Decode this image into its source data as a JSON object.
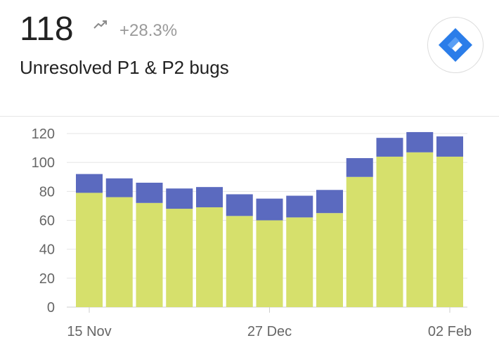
{
  "header": {
    "value": "118",
    "change": "+28.3%",
    "subtitle": "Unresolved P1 & P2 bugs",
    "trend_icon": "trending-up-icon",
    "logo_icon": "jira-logo-icon"
  },
  "colors": {
    "base": "#d6e06c",
    "top": "#5b6abf",
    "logo": "#2b7de9"
  },
  "chart_data": {
    "type": "bar",
    "stacked": true,
    "categories": [
      "15 Nov",
      "",
      "",
      "",
      "",
      "",
      "27 Dec",
      "",
      "",
      "",
      "",
      "",
      "02 Feb"
    ],
    "series": [
      {
        "values": [
          79,
          76,
          72,
          68,
          69,
          63,
          60,
          62,
          65,
          90,
          104,
          107,
          104
        ]
      },
      {
        "values": [
          13,
          13,
          14,
          14,
          14,
          15,
          15,
          15,
          16,
          13,
          13,
          14,
          14
        ]
      }
    ],
    "xticks": [
      "15 Nov",
      "27 Dec",
      "02 Feb"
    ],
    "yticks": [
      0,
      20,
      40,
      60,
      80,
      100,
      120
    ],
    "ylim": [
      0,
      125
    ],
    "grid": true,
    "legend": "none"
  }
}
